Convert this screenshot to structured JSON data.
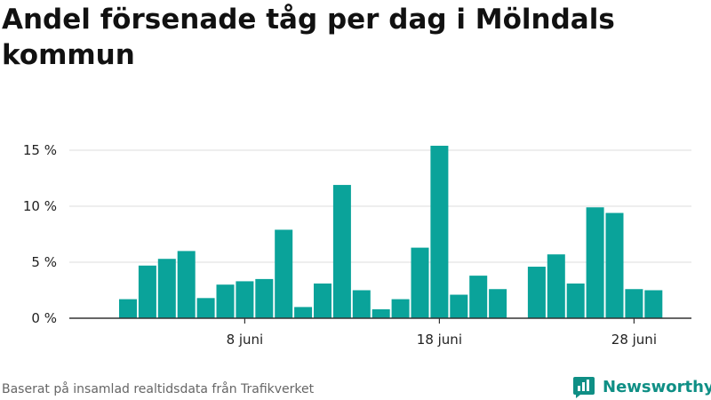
{
  "title": "Andel försenade tåg per dag i Mölndals kommun",
  "source": "Baserat på insamlad realtidsdata från Trafikverket",
  "brand": {
    "name": "Newsworthy",
    "icon": "newsworthy-logo-icon"
  },
  "colors": {
    "bar": "#0aa39a",
    "grid": "#dddddd",
    "axis": "#333333",
    "brand": "#0f8f85"
  },
  "chart_data": {
    "type": "bar",
    "xlabel": "",
    "ylabel": "",
    "grid": true,
    "ylim": [
      0,
      16
    ],
    "y_ticks": [
      {
        "value": 0,
        "label": "0 %"
      },
      {
        "value": 5,
        "label": "5 %"
      },
      {
        "value": 10,
        "label": "10 %"
      },
      {
        "value": 15,
        "label": "15 %"
      }
    ],
    "x_ticks": [
      {
        "day": 8,
        "label": "8 juni"
      },
      {
        "day": 18,
        "label": "18 juni"
      },
      {
        "day": 28,
        "label": "28 juni"
      }
    ],
    "x_range": [
      -1,
      30
    ],
    "days": [
      2,
      3,
      4,
      5,
      6,
      7,
      8,
      9,
      10,
      11,
      12,
      13,
      14,
      15,
      16,
      17,
      18,
      19,
      20,
      21,
      23,
      24,
      25,
      26,
      27,
      28,
      29
    ],
    "values": [
      1.7,
      4.7,
      5.3,
      6.0,
      1.8,
      3.0,
      3.3,
      3.5,
      7.9,
      1.0,
      3.1,
      11.9,
      2.5,
      0.8,
      1.7,
      6.3,
      15.4,
      2.1,
      3.8,
      2.6,
      4.6,
      5.7,
      3.1,
      9.9,
      9.4,
      2.6,
      2.5
    ]
  }
}
